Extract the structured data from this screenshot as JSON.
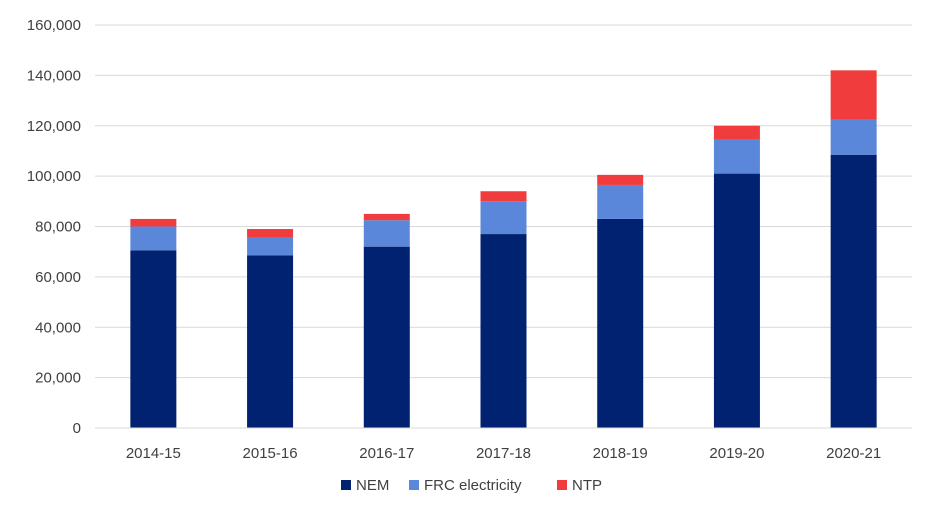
{
  "chart_data": {
    "type": "bar",
    "stacked": true,
    "categories": [
      "2014-15",
      "2015-16",
      "2016-17",
      "2017-18",
      "2018-19",
      "2019-20",
      "2020-21"
    ],
    "series": [
      {
        "name": "NEM",
        "color": "#002270",
        "values": [
          70500,
          68500,
          72000,
          77000,
          83000,
          101000,
          108500
        ]
      },
      {
        "name": "FRC electricity",
        "color": "#5b87da",
        "values": [
          9500,
          7000,
          10500,
          13000,
          13500,
          13500,
          14000
        ]
      },
      {
        "name": "NTP",
        "color": "#f03c3c",
        "values": [
          3000,
          3500,
          2500,
          4000,
          4000,
          5500,
          19500
        ]
      }
    ],
    "ylim": [
      0,
      160000
    ],
    "yticks": [
      0,
      20000,
      40000,
      60000,
      80000,
      100000,
      120000,
      140000,
      160000
    ],
    "ytick_labels": [
      "0",
      "20,000",
      "40,000",
      "60,000",
      "80,000",
      "100,000",
      "120,000",
      "140,000",
      "160,000"
    ],
    "grid": true,
    "legend_position": "bottom",
    "title": "",
    "xlabel": "",
    "ylabel": ""
  }
}
